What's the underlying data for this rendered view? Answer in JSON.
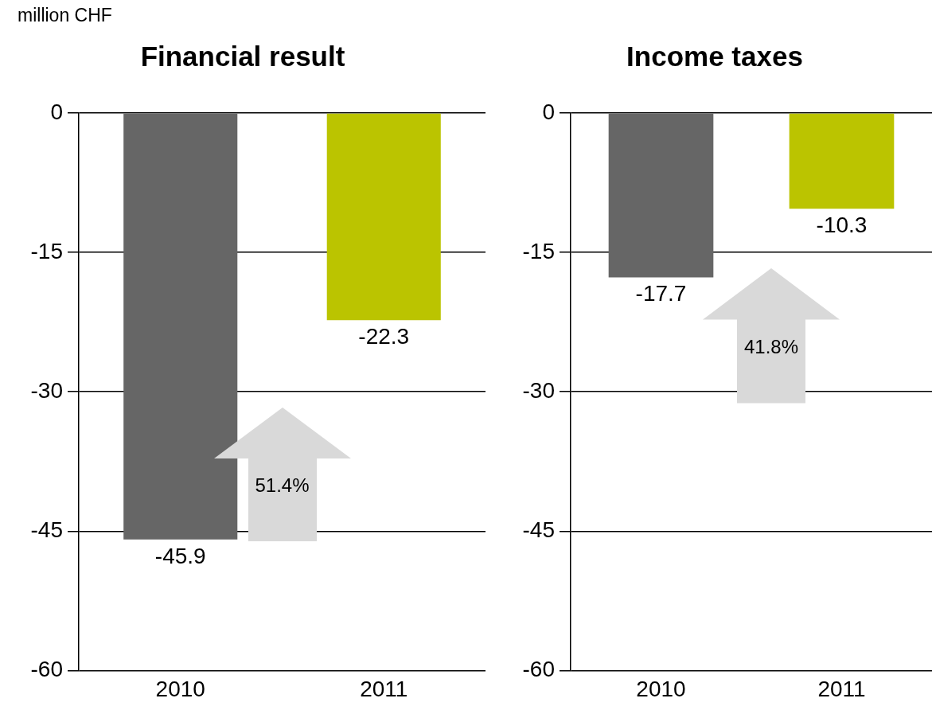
{
  "chart_data": [
    {
      "type": "bar",
      "title": "Financial result",
      "ylabel": "million CHF",
      "categories": [
        "2010",
        "2011"
      ],
      "values": [
        -45.9,
        -22.3
      ],
      "colors": [
        "#666666",
        "#bbc400"
      ],
      "ylim": [
        -60,
        0
      ],
      "yticks": [
        0,
        -15,
        -30,
        -45,
        -60
      ],
      "grid": "y",
      "data_labels": true,
      "annotations": [
        "51.4%"
      ]
    },
    {
      "type": "bar",
      "title": "Income taxes",
      "categories": [
        "2010",
        "2011"
      ],
      "values": [
        -17.7,
        -10.3
      ],
      "colors": [
        "#666666",
        "#bbc400"
      ],
      "ylim": [
        -60,
        0
      ],
      "yticks": [
        0,
        -15,
        -30,
        -45,
        -60
      ],
      "grid": "y",
      "data_labels": true,
      "annotations": [
        "41.8%"
      ]
    }
  ]
}
